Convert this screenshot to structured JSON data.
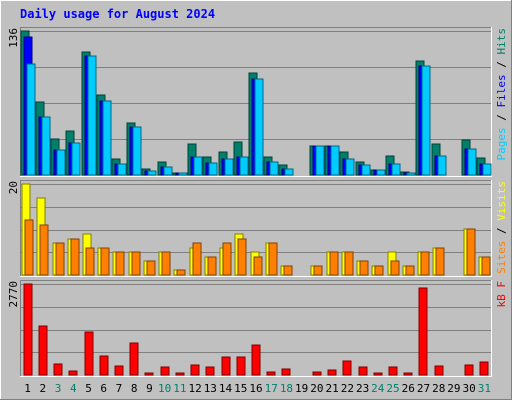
{
  "chart_data": {
    "type": "bar",
    "title": "Daily usage for August 2024",
    "categories": [
      "1",
      "2",
      "3",
      "4",
      "5",
      "6",
      "7",
      "8",
      "9",
      "10",
      "11",
      "12",
      "13",
      "14",
      "15",
      "16",
      "17",
      "18",
      "19",
      "20",
      "21",
      "22",
      "23",
      "24",
      "25",
      "26",
      "27",
      "28",
      "29",
      "30",
      "31"
    ],
    "weekend_days": [
      "3",
      "4",
      "10",
      "11",
      "17",
      "18",
      "24",
      "25",
      "31"
    ],
    "panels": [
      {
        "max_label": "136",
        "ylim": [
          0,
          136
        ],
        "right_label": [
          {
            "text": "Pages",
            "color": "#00CCFF"
          },
          {
            "text": " / ",
            "color": "#000000"
          },
          {
            "text": "Files",
            "color": "#0000FF"
          },
          {
            "text": " / ",
            "color": "#000000"
          },
          {
            "text": "Hits",
            "color": "#00806B"
          }
        ],
        "series": [
          {
            "name": "Hits",
            "color": "#00806B",
            "values": [
              136,
              69,
              34,
              42,
              116,
              76,
              15,
              49,
              6,
              12,
              2,
              29,
              17,
              22,
              31,
              96,
              17,
              9,
              0,
              27,
              27,
              22,
              12,
              5,
              18,
              3,
              108,
              29,
              0,
              33,
              16
            ]
          },
          {
            "name": "Files",
            "color": "#0000FF",
            "values": [
              130,
              55,
              24,
              30,
              112,
              70,
              10,
              45,
              4,
              8,
              1,
              17,
              11,
              15,
              17,
              91,
              12,
              6,
              0,
              27,
              27,
              15,
              9,
              5,
              10,
              2,
              103,
              18,
              0,
              25,
              10
            ]
          },
          {
            "name": "Pages",
            "color": "#00CCFF",
            "values": [
              105,
              55,
              24,
              30,
              112,
              70,
              10,
              45,
              4,
              8,
              1,
              17,
              11,
              15,
              17,
              91,
              12,
              6,
              0,
              27,
              27,
              15,
              9,
              5,
              10,
              2,
              103,
              18,
              0,
              25,
              10
            ]
          }
        ]
      },
      {
        "max_label": "20",
        "ylim": [
          0,
          20
        ],
        "right_label": [
          {
            "text": "Sites",
            "color": "#FF8000"
          },
          {
            "text": " / ",
            "color": "#000000"
          },
          {
            "text": "Visits",
            "color": "#FFFF00"
          }
        ],
        "series": [
          {
            "name": "Visits",
            "color": "#FFFF00",
            "values": [
              20,
              17,
              7,
              8,
              9,
              6,
              5,
              5,
              3,
              5,
              1,
              6,
              4,
              6,
              9,
              5,
              7,
              2,
              0,
              2,
              5,
              5,
              3,
              2,
              5,
              2,
              5,
              6,
              0,
              10,
              4
            ]
          },
          {
            "name": "Sites",
            "color": "#FF8000",
            "values": [
              12,
              11,
              7,
              8,
              6,
              6,
              5,
              5,
              3,
              5,
              1,
              7,
              4,
              7,
              8,
              4,
              7,
              2,
              0,
              2,
              5,
              5,
              3,
              2,
              3,
              2,
              5,
              6,
              0,
              10,
              4
            ]
          }
        ]
      },
      {
        "max_label": "2770",
        "ylim": [
          0,
          2770
        ],
        "right_label": [
          {
            "text": "kB F",
            "color": "#FF0000"
          }
        ],
        "series": [
          {
            "name": "kB F",
            "color": "#FF0000",
            "values": [
              2770,
              1480,
              350,
              130,
              1310,
              590,
              260,
              960,
              30,
              230,
              30,
              290,
              250,
              540,
              540,
              920,
              80,
              180,
              0,
              80,
              160,
              430,
              240,
              30,
              250,
              50,
              2660,
              260,
              0,
              290,
              390
            ]
          }
        ]
      }
    ]
  }
}
